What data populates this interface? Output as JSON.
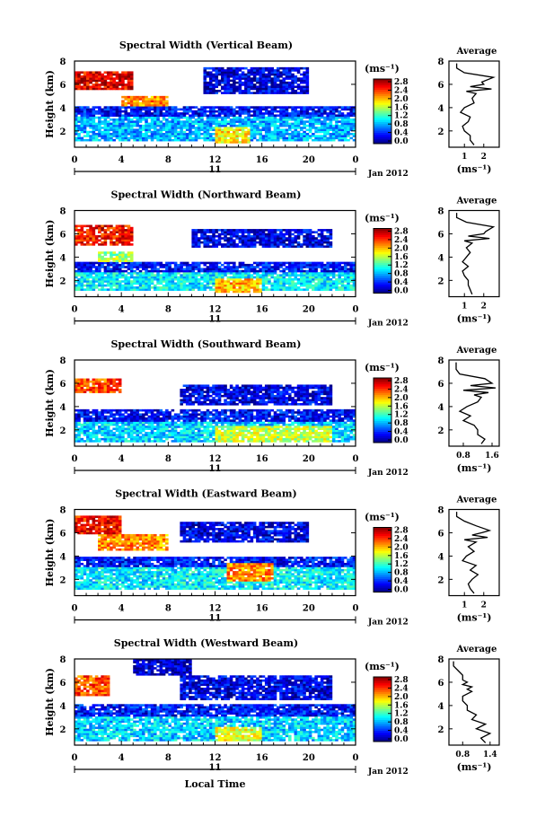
{
  "chart_data": [
    {
      "type": "heatmap",
      "title": "Spectral Width (Vertical Beam)",
      "ylabel": "Height (km)",
      "xlabel": "",
      "xlim": [
        0,
        24
      ],
      "ylim": [
        0.6,
        8
      ],
      "x_ticks": [
        "0",
        "4",
        "8",
        "12",
        "16",
        "20",
        "0"
      ],
      "y_ticks": [
        "2",
        "4",
        "6",
        "8"
      ],
      "date_day": "11",
      "date_label": "Jan 2012",
      "colorbar": {
        "unit": "(ms⁻¹)",
        "ticks": [
          "2.8",
          "2.4",
          "2.0",
          "1.6",
          "1.2",
          "0.8",
          "0.4",
          "0.0"
        ],
        "range": [
          0,
          3.0
        ]
      },
      "regions": [
        {
          "x0": 0,
          "x1": 5,
          "y0": 5.5,
          "y1": 7.2,
          "value": 2.7
        },
        {
          "x0": 4,
          "x1": 8,
          "y0": 4.1,
          "y1": 5.0,
          "value": 2.2
        },
        {
          "x0": 0,
          "x1": 24,
          "y0": 3.2,
          "y1": 4.1,
          "value": 0.4
        },
        {
          "x0": 0,
          "x1": 24,
          "y0": 1.2,
          "y1": 3.2,
          "value": 0.9
        },
        {
          "x0": 11,
          "x1": 20,
          "y0": 5.2,
          "y1": 7.4,
          "value": 0.3
        },
        {
          "x0": 12,
          "x1": 15,
          "y0": 1.0,
          "y1": 2.4,
          "value": 1.9
        }
      ],
      "average": {
        "title": "Average",
        "unit": "(ms⁻¹)",
        "x_ticks": [
          "1",
          "2"
        ],
        "xlim": [
          0.2,
          2.8
        ],
        "y": [
          0.8,
          1.2,
          1.6,
          2.0,
          2.4,
          2.8,
          3.2,
          3.6,
          4.0,
          4.4,
          4.8,
          5.2,
          5.4,
          5.6,
          5.8,
          6.0,
          6.2,
          6.6,
          7.0,
          7.4,
          7.8
        ],
        "x": [
          1.5,
          1.3,
          1.3,
          1.0,
          0.9,
          1.2,
          1.3,
          0.8,
          1.0,
          1.5,
          1.4,
          1.6,
          1.1,
          2.4,
          1.3,
          2.0,
          1.9,
          2.5,
          1.0,
          0.6,
          0.6
        ]
      }
    },
    {
      "type": "heatmap",
      "title": "Spectral Width (Northward Beam)",
      "ylabel": "Height (km)",
      "xlabel": "",
      "xlim": [
        0,
        24
      ],
      "ylim": [
        0.6,
        8
      ],
      "x_ticks": [
        "0",
        "4",
        "8",
        "12",
        "16",
        "20",
        "0"
      ],
      "y_ticks": [
        "2",
        "4",
        "6",
        "8"
      ],
      "date_day": "11",
      "date_label": "Jan 2012",
      "colorbar": {
        "unit": "(ms⁻¹)",
        "ticks": [
          "2.8",
          "2.4",
          "2.0",
          "1.6",
          "1.2",
          "0.8",
          "0.4",
          "0.0"
        ],
        "range": [
          0,
          3.0
        ]
      },
      "regions": [
        {
          "x0": 0,
          "x1": 5,
          "y0": 5.0,
          "y1": 6.8,
          "value": 2.6
        },
        {
          "x0": 2,
          "x1": 5,
          "y0": 3.3,
          "y1": 4.4,
          "value": 1.6
        },
        {
          "x0": 0,
          "x1": 24,
          "y0": 2.8,
          "y1": 3.6,
          "value": 0.4
        },
        {
          "x0": 0,
          "x1": 24,
          "y0": 1.1,
          "y1": 2.8,
          "value": 1.1
        },
        {
          "x0": 10,
          "x1": 22,
          "y0": 4.8,
          "y1": 6.4,
          "value": 0.3
        },
        {
          "x0": 12,
          "x1": 16,
          "y0": 1.0,
          "y1": 2.2,
          "value": 2.1
        }
      ],
      "average": {
        "title": "Average",
        "unit": "(ms⁻¹)",
        "x_ticks": [
          "1",
          "2"
        ],
        "xlim": [
          0.2,
          2.8
        ],
        "y": [
          0.8,
          1.2,
          1.6,
          2.0,
          2.4,
          2.8,
          3.2,
          3.6,
          4.0,
          4.4,
          4.8,
          5.2,
          5.4,
          5.6,
          5.8,
          6.0,
          6.2,
          6.6,
          7.0,
          7.4,
          7.8
        ],
        "x": [
          1.4,
          1.3,
          1.2,
          1.2,
          1.0,
          0.9,
          1.2,
          0.9,
          1.1,
          1.3,
          1.1,
          1.4,
          1.0,
          2.3,
          1.2,
          2.0,
          2.1,
          2.5,
          1.1,
          0.6,
          0.6
        ]
      }
    },
    {
      "type": "heatmap",
      "title": "Spectral Width (Southward Beam)",
      "ylabel": "Height (km)",
      "xlabel": "",
      "xlim": [
        0,
        24
      ],
      "ylim": [
        0.6,
        8
      ],
      "x_ticks": [
        "0",
        "4",
        "8",
        "12",
        "16",
        "20",
        "0"
      ],
      "y_ticks": [
        "2",
        "4",
        "6",
        "8"
      ],
      "date_day": "11",
      "date_label": "Jan 2012",
      "colorbar": {
        "unit": "(ms⁻¹)",
        "ticks": [
          "2.8",
          "2.4",
          "2.0",
          "1.6",
          "1.2",
          "0.8",
          "0.4",
          "0.0"
        ],
        "range": [
          0,
          3.0
        ]
      },
      "regions": [
        {
          "x0": 0,
          "x1": 4,
          "y0": 5.2,
          "y1": 6.4,
          "value": 2.4
        },
        {
          "x0": 0,
          "x1": 24,
          "y0": 2.8,
          "y1": 3.8,
          "value": 0.4
        },
        {
          "x0": 0,
          "x1": 24,
          "y0": 1.0,
          "y1": 2.8,
          "value": 1.0
        },
        {
          "x0": 9,
          "x1": 22,
          "y0": 4.2,
          "y1": 5.8,
          "value": 0.3
        },
        {
          "x0": 12,
          "x1": 22,
          "y0": 1.0,
          "y1": 2.4,
          "value": 1.7
        }
      ],
      "average": {
        "title": "Average",
        "unit": "(ms⁻¹)",
        "x_ticks": [
          "0.8",
          "1.6"
        ],
        "xlim": [
          0.4,
          1.8
        ],
        "y": [
          0.8,
          1.2,
          1.6,
          2.0,
          2.4,
          2.8,
          3.2,
          3.6,
          4.0,
          4.4,
          4.8,
          5.0,
          5.2,
          5.4,
          5.6,
          5.8,
          6.0,
          6.4,
          6.8,
          7.2,
          7.8
        ],
        "x": [
          1.3,
          1.4,
          1.2,
          1.2,
          1.1,
          0.8,
          1.0,
          0.7,
          0.9,
          1.2,
          1.3,
          1.1,
          1.5,
          0.8,
          1.7,
          1.0,
          1.6,
          1.4,
          0.7,
          0.6,
          0.6
        ]
      }
    },
    {
      "type": "heatmap",
      "title": "Spectral Width (Eastward Beam)",
      "ylabel": "Height (km)",
      "xlabel": "",
      "xlim": [
        0,
        24
      ],
      "ylim": [
        0.6,
        8
      ],
      "x_ticks": [
        "0",
        "4",
        "8",
        "12",
        "16",
        "20",
        "0"
      ],
      "y_ticks": [
        "2",
        "4",
        "6",
        "8"
      ],
      "date_day": "11",
      "date_label": "Jan 2012",
      "colorbar": {
        "unit": "(ms⁻¹)",
        "ticks": [
          "2.8",
          "2.4",
          "2.0",
          "1.6",
          "1.2",
          "0.8",
          "0.4",
          "0.0"
        ],
        "range": [
          0,
          3.0
        ]
      },
      "regions": [
        {
          "x0": 0,
          "x1": 4,
          "y0": 5.8,
          "y1": 7.4,
          "value": 2.6
        },
        {
          "x0": 2,
          "x1": 8,
          "y0": 4.4,
          "y1": 5.8,
          "value": 2.2
        },
        {
          "x0": 0,
          "x1": 24,
          "y0": 3.0,
          "y1": 4.0,
          "value": 0.4
        },
        {
          "x0": 0,
          "x1": 24,
          "y0": 1.1,
          "y1": 3.0,
          "value": 1.1
        },
        {
          "x0": 9,
          "x1": 20,
          "y0": 5.2,
          "y1": 7.0,
          "value": 0.3
        },
        {
          "x0": 13,
          "x1": 17,
          "y0": 1.8,
          "y1": 3.4,
          "value": 2.2
        }
      ],
      "average": {
        "title": "Average",
        "unit": "(ms⁻¹)",
        "x_ticks": [
          "1",
          "2"
        ],
        "xlim": [
          0.2,
          2.8
        ],
        "y": [
          0.8,
          1.2,
          1.6,
          2.0,
          2.4,
          2.8,
          3.2,
          3.6,
          4.0,
          4.4,
          4.8,
          5.2,
          5.4,
          5.6,
          5.8,
          6.0,
          6.2,
          6.6,
          7.0,
          7.4,
          7.8
        ],
        "x": [
          1.5,
          1.3,
          1.2,
          1.4,
          1.7,
          1.3,
          1.6,
          0.9,
          1.1,
          1.5,
          1.2,
          1.6,
          1.0,
          2.2,
          1.4,
          1.9,
          2.3,
          1.6,
          1.0,
          0.6,
          0.6
        ]
      }
    },
    {
      "type": "heatmap",
      "title": "Spectral Width (Westward Beam)",
      "ylabel": "Height (km)",
      "xlabel": "Local Time",
      "xlim": [
        0,
        24
      ],
      "ylim": [
        0.6,
        8
      ],
      "x_ticks": [
        "0",
        "4",
        "8",
        "12",
        "16",
        "20",
        "0"
      ],
      "y_ticks": [
        "2",
        "4",
        "6",
        "8"
      ],
      "date_day": "11",
      "date_label": "Jan 2012",
      "colorbar": {
        "unit": "(ms⁻¹)",
        "ticks": [
          "2.8",
          "2.4",
          "2.0",
          "1.6",
          "1.2",
          "0.8",
          "0.4",
          "0.0"
        ],
        "range": [
          0,
          3.0
        ]
      },
      "regions": [
        {
          "x0": 0,
          "x1": 3,
          "y0": 4.8,
          "y1": 6.6,
          "value": 2.4
        },
        {
          "x0": 0,
          "x1": 24,
          "y0": 3.0,
          "y1": 4.2,
          "value": 0.4
        },
        {
          "x0": 0,
          "x1": 24,
          "y0": 1.0,
          "y1": 3.0,
          "value": 1.0
        },
        {
          "x0": 5,
          "x1": 10,
          "y0": 6.6,
          "y1": 8.0,
          "value": 0.2
        },
        {
          "x0": 9,
          "x1": 22,
          "y0": 4.4,
          "y1": 6.6,
          "value": 0.3
        },
        {
          "x0": 12,
          "x1": 16,
          "y0": 1.0,
          "y1": 2.2,
          "value": 1.8
        }
      ],
      "average": {
        "title": "Average",
        "unit": "(ms⁻¹)",
        "x_ticks": [
          "0.8",
          "1.4"
        ],
        "xlim": [
          0.5,
          1.6
        ],
        "y": [
          0.8,
          1.2,
          1.6,
          2.0,
          2.4,
          2.8,
          3.2,
          3.6,
          4.0,
          4.4,
          4.8,
          5.2,
          5.4,
          5.6,
          5.8,
          6.0,
          6.2,
          6.6,
          7.0,
          7.4,
          7.8
        ],
        "x": [
          1.3,
          1.2,
          1.4,
          1.1,
          1.3,
          1.0,
          1.1,
          0.9,
          0.9,
          0.8,
          0.8,
          1.0,
          0.9,
          1.0,
          0.8,
          0.9,
          0.8,
          0.8,
          0.7,
          0.6,
          0.6
        ]
      }
    }
  ]
}
